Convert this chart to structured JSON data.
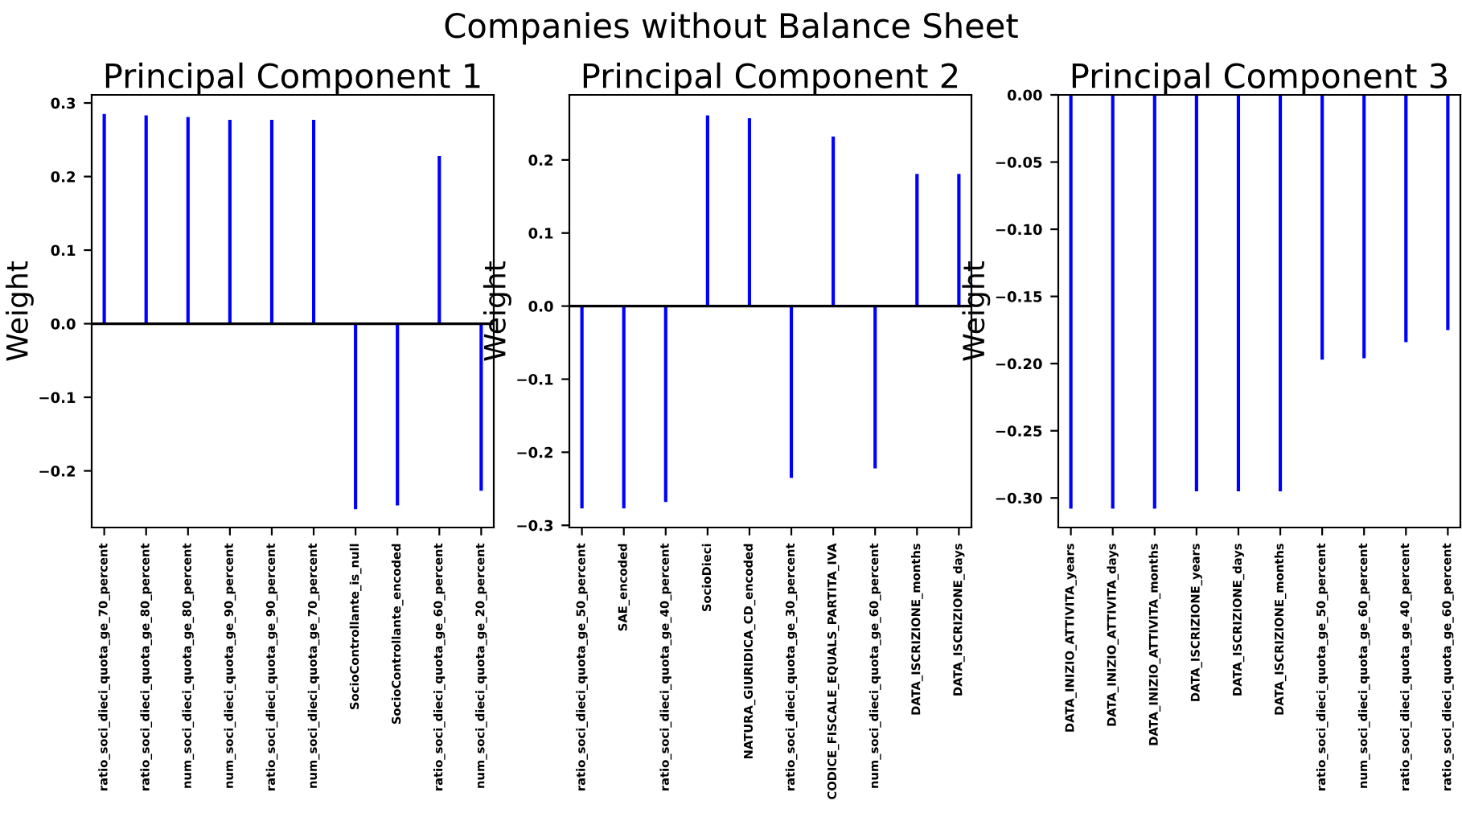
{
  "chart_data": [
    {
      "type": "bar",
      "title": "Principal Component 1",
      "ylabel": "Weight",
      "annotations": [
        "Companies without Balance Sheet"
      ],
      "categories": [
        "ratio_soci_dieci_quota_ge_70_percent",
        "ratio_soci_dieci_quota_ge_80_percent",
        "num_soci_dieci_quota_ge_80_percent",
        "num_soci_dieci_quota_ge_90_percent",
        "ratio_soci_dieci_quota_ge_90_percent",
        "num_soci_dieci_quota_ge_70_percent",
        "SocioControllante_is_null",
        "SocioControllante_encoded",
        "ratio_soci_dieci_quota_ge_60_percent",
        "num_soci_dieci_quota_ge_20_percent"
      ],
      "values": [
        0.285,
        0.283,
        0.281,
        0.277,
        0.277,
        0.277,
        -0.252,
        -0.247,
        0.228,
        -0.227
      ],
      "color": "#0000ff",
      "ylim": [
        -0.277,
        0.311
      ],
      "yticks": [
        {
          "value": -0.2,
          "label": "−0.2"
        },
        {
          "value": -0.1,
          "label": "−0.1"
        },
        {
          "value": 0,
          "label": "0.0"
        },
        0.1,
        0.2,
        0.3
      ],
      "ref_lines": [
        {
          "axis": "y",
          "value": 0,
          "color": "#000000"
        }
      ],
      "grid": false,
      "legend": false
    },
    {
      "type": "bar",
      "title": "Principal Component 2",
      "ylabel": "Weight",
      "categories": [
        "ratio_soci_dieci_quota_ge_50_percent",
        "SAE_encoded",
        "ratio_soci_dieci_quota_ge_40_percent",
        "SocioDieci",
        "NATURA_GIURIDICA_CD_encoded",
        "ratio_soci_dieci_quota_ge_30_percent",
        "CODICE_FISCALE_EQUALS_PARTITA_IVA",
        "num_soci_dieci_quota_ge_60_percent",
        "DATA_ISCRIZIONE_months",
        "DATA_ISCRIZIONE_days"
      ],
      "values": [
        -0.277,
        -0.277,
        -0.268,
        0.261,
        0.257,
        -0.235,
        0.232,
        -0.222,
        0.181,
        0.181
      ],
      "color": "#0000ff",
      "ylim": [
        -0.303,
        0.289
      ],
      "yticks": [
        {
          "value": -0.3,
          "label": "−0.3"
        },
        {
          "value": -0.2,
          "label": "−0.2"
        },
        {
          "value": -0.1,
          "label": "−0.1"
        },
        {
          "value": 0,
          "label": "0.0"
        },
        0.1,
        0.2
      ],
      "ref_lines": [
        {
          "axis": "y",
          "value": 0,
          "color": "#000000"
        }
      ],
      "grid": false,
      "legend": false
    },
    {
      "type": "bar",
      "title": "Principal Component 3",
      "ylabel": "Weight",
      "categories": [
        "DATA_INIZIO_ATTIVITA_years",
        "DATA_INIZIO_ATTIVITA_days",
        "DATA_INIZIO_ATTIVITA_months",
        "DATA_ISCRIZIONE_years",
        "DATA_ISCRIZIONE_days",
        "DATA_ISCRIZIONE_months",
        "ratio_soci_dieci_quota_ge_50_percent",
        "num_soci_dieci_quota_ge_60_percent",
        "ratio_soci_dieci_quota_ge_40_percent",
        "ratio_soci_dieci_quota_ge_60_percent"
      ],
      "values": [
        -0.308,
        -0.308,
        -0.308,
        -0.295,
        -0.295,
        -0.295,
        -0.197,
        -0.196,
        -0.184,
        -0.175
      ],
      "color": "#0000ff",
      "ylim": [
        -0.322,
        0
      ],
      "yticks": [
        {
          "value": -0.3,
          "label": "−0.30"
        },
        {
          "value": -0.25,
          "label": "−0.25"
        },
        {
          "value": -0.2,
          "label": "−0.20"
        },
        {
          "value": -0.15,
          "label": "−0.15"
        },
        {
          "value": -0.1,
          "label": "−0.10"
        },
        {
          "value": -0.05,
          "label": "−0.05"
        },
        {
          "value": 0,
          "label": "0.00"
        }
      ],
      "grid": false,
      "legend": false
    }
  ]
}
